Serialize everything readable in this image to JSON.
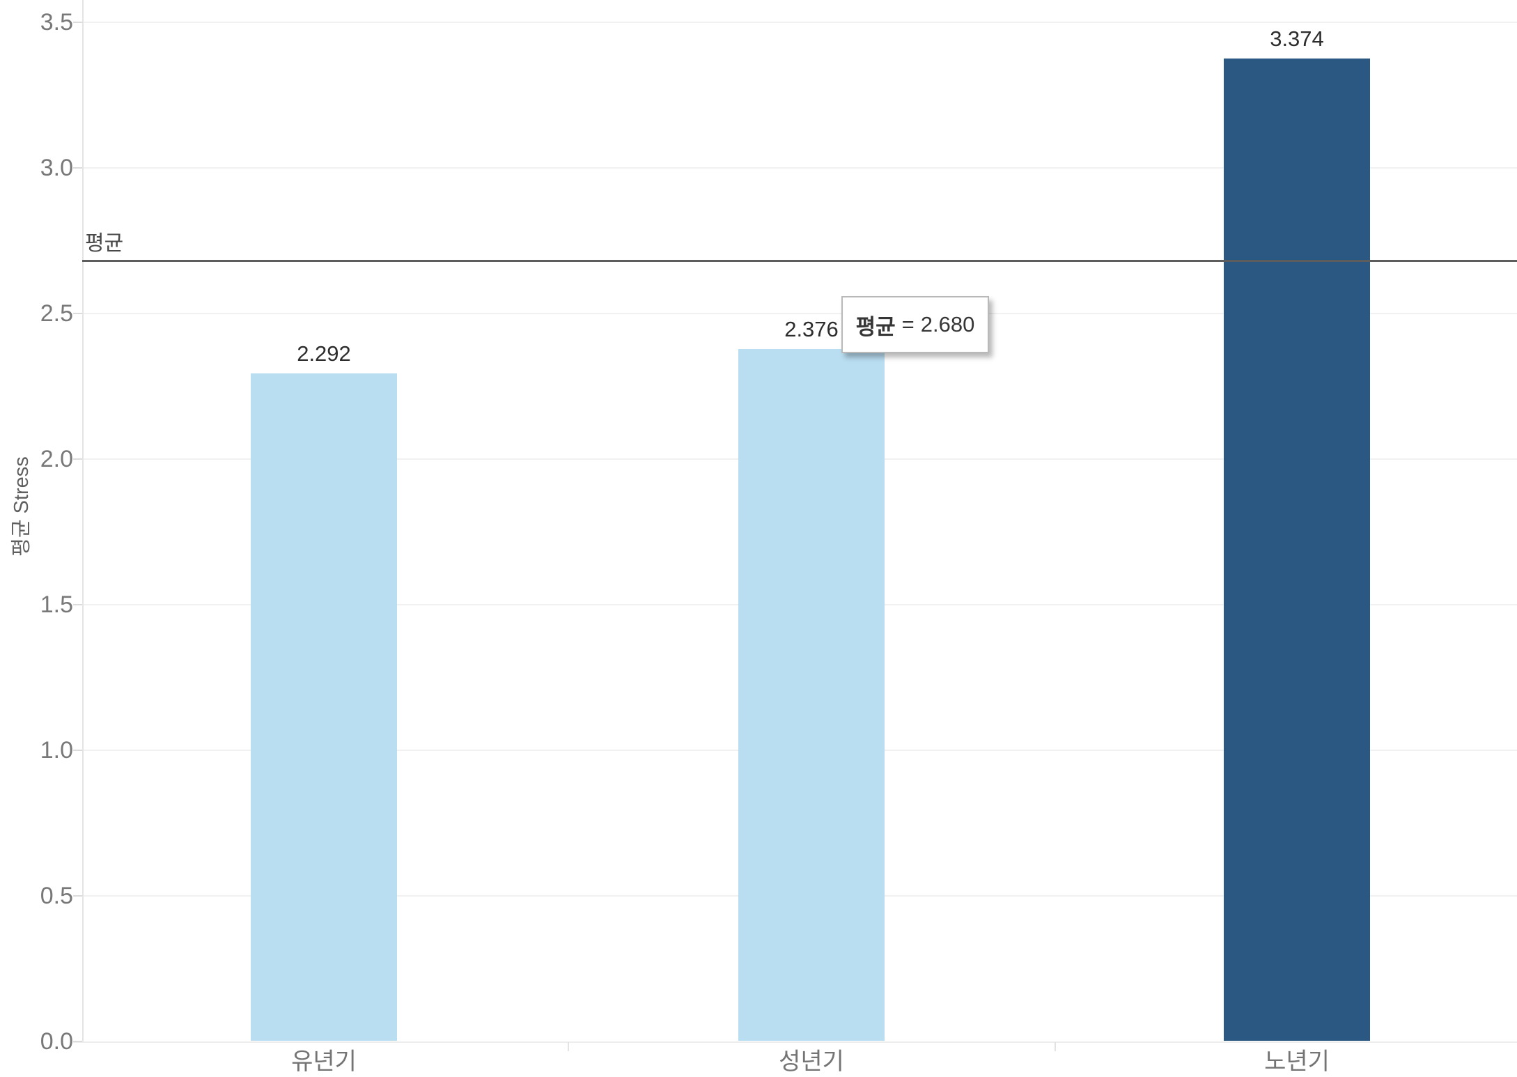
{
  "chart_data": {
    "type": "bar",
    "title": "",
    "xlabel": "",
    "ylabel": "평균 Stress",
    "categories": [
      "유년기",
      "성년기",
      "노년기"
    ],
    "values": [
      2.292,
      2.376,
      3.374
    ],
    "value_labels": [
      "2.292",
      "2.376",
      "3.374"
    ],
    "bar_colors": [
      "#b9ddf1",
      "#b9ddf1",
      "#2b5883"
    ],
    "ylim": [
      0,
      3.5
    ],
    "y_ticks": [
      0.0,
      0.5,
      1.0,
      1.5,
      2.0,
      2.5,
      3.0,
      3.5
    ],
    "y_tick_labels": [
      "0.0",
      "0.5",
      "1.0",
      "1.5",
      "2.0",
      "2.5",
      "3.0",
      "3.5"
    ],
    "grid": true,
    "legend": "none",
    "reference_line": {
      "label": "평균",
      "value": 2.68,
      "value_label": "2.680"
    },
    "tooltip": {
      "label": "평균",
      "equals": "=",
      "value": "2.680"
    }
  },
  "colors": {
    "bar_light": "#b9ddf1",
    "bar_dark": "#2b5883",
    "reference_line": "#5d5d5d",
    "gridline": "#f1f1f1",
    "axis_text": "#787878",
    "value_text": "#2d2d2d"
  }
}
